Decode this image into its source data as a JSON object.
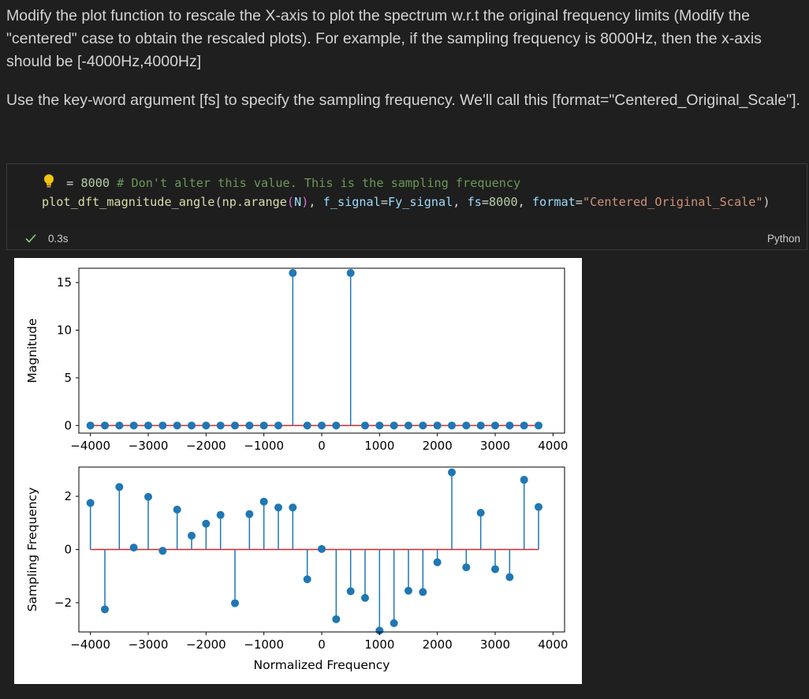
{
  "markdown": {
    "para1": "Modify the plot function to rescale the X-axis to plot the spectrum w.r.t the original frequency limits (Modify the \"centered\" case to obtain the rescaled plots). For example, if the sampling frequency is 8000Hz, then the x-axis should be [-4000Hz,4000Hz]",
    "para2": "Use the key-word argument [fs] to specify the sampling frequency. We'll call this [format=\"Centered_Original_Scale\"]."
  },
  "code": {
    "line1": {
      "eq": " = ",
      "num": "8000",
      "comment": " # Don't alter this value. This is the sampling frequency"
    },
    "line2": {
      "fn": "plot_dft_magnitude_angle",
      "p1": "(",
      "arg1": "np.arange",
      "p2": "(",
      "argN": "N",
      "p3": ")",
      "sep1": ", ",
      "kw1": "f_signal",
      "eq1": "=",
      "val1": "Fy_signal",
      "sep2": ", ",
      "kw2": "fs",
      "eq2": "=",
      "val2": "8000",
      "sep3": ", ",
      "kw3": "format",
      "eq3": "=",
      "val3": "\"Centered_Original_Scale\"",
      "p4": ")"
    }
  },
  "status": {
    "exec_time": "0.3s",
    "language": "Python",
    "check_color": "#89d185"
  },
  "chart_data": [
    {
      "type": "stem",
      "xlabel": "",
      "ylabel": "Magnitude",
      "xlim": [
        -4200,
        4200
      ],
      "ylim": [
        -0.8,
        16.5
      ],
      "xticks": [
        -4000,
        -3000,
        -2000,
        -1000,
        0,
        1000,
        2000,
        3000,
        4000
      ],
      "xtick_labels": [
        "−4000",
        "−3000",
        "−2000",
        "−1000",
        "0",
        "1000",
        "2000",
        "3000",
        "4000"
      ],
      "yticks": [
        0,
        5,
        10,
        15
      ],
      "ytick_labels": [
        "0",
        "5",
        "10",
        "15"
      ],
      "x": [
        -4000,
        -3750,
        -3500,
        -3250,
        -3000,
        -2750,
        -2500,
        -2250,
        -2000,
        -1750,
        -1500,
        -1250,
        -1000,
        -750,
        -500,
        -250,
        0,
        250,
        500,
        750,
        1000,
        1250,
        1500,
        1750,
        2000,
        2250,
        2500,
        2750,
        3000,
        3250,
        3500,
        3750
      ],
      "y": [
        0,
        0,
        0,
        0,
        0,
        0,
        0,
        0,
        0,
        0,
        0,
        0,
        0,
        0,
        16,
        0,
        0,
        0,
        16,
        0,
        0,
        0,
        0,
        0,
        0,
        0,
        0,
        0,
        0,
        0,
        0,
        0
      ],
      "stem_color": "#1f77b4",
      "baseline_color": "#d62728"
    },
    {
      "type": "stem",
      "xlabel": "Normalized Frequency",
      "ylabel": "Sampling Frequency",
      "xlim": [
        -4200,
        4200
      ],
      "ylim": [
        -3.1,
        3.1
      ],
      "xticks": [
        -4000,
        -3000,
        -2000,
        -1000,
        0,
        1000,
        2000,
        3000,
        4000
      ],
      "xtick_labels": [
        "−4000",
        "−3000",
        "−2000",
        "−1000",
        "0",
        "1000",
        "2000",
        "3000",
        "4000"
      ],
      "yticks": [
        -2,
        0,
        2
      ],
      "ytick_labels": [
        "−2",
        "0",
        "2"
      ],
      "x": [
        -4000,
        -3750,
        -3500,
        -3250,
        -3000,
        -2750,
        -2500,
        -2250,
        -2000,
        -1750,
        -1500,
        -1250,
        -1000,
        -750,
        -500,
        -250,
        0,
        250,
        500,
        750,
        1000,
        1250,
        1500,
        1750,
        2000,
        2250,
        2500,
        2750,
        3000,
        3250,
        3500,
        3750
      ],
      "y": [
        1.75,
        -2.25,
        2.35,
        0.07,
        1.98,
        -0.05,
        1.5,
        0.52,
        0.97,
        1.3,
        -2.02,
        1.33,
        1.8,
        1.58,
        1.58,
        -1.12,
        0.02,
        -2.62,
        -1.57,
        -1.82,
        -3.05,
        -2.77,
        -1.55,
        -1.6,
        -0.48,
        2.9,
        -0.67,
        1.38,
        -0.74,
        -1.04,
        2.62,
        1.6
      ],
      "stem_color": "#1f77b4",
      "baseline_color": "#d62728"
    }
  ]
}
